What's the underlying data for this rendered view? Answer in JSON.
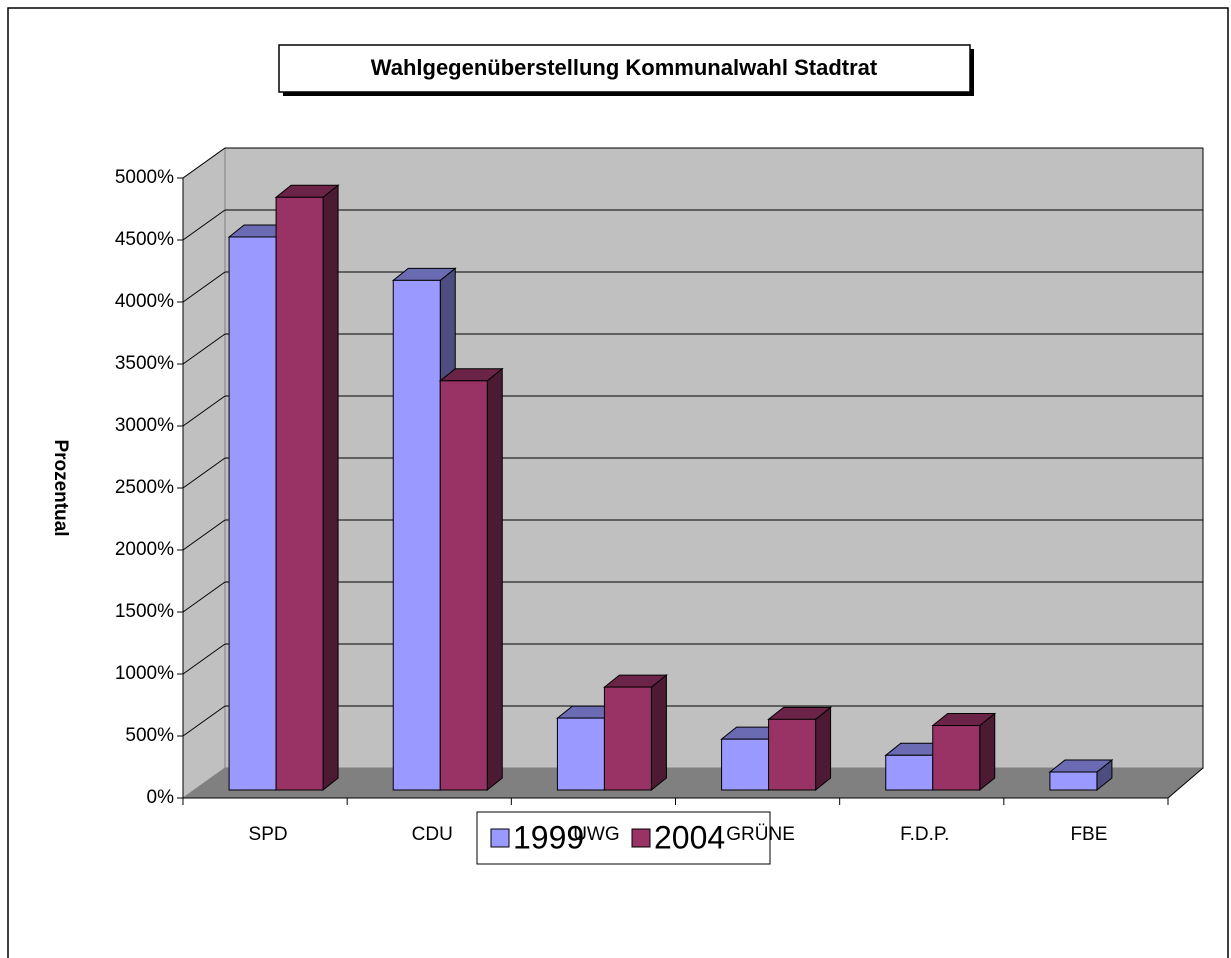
{
  "chart_data": {
    "type": "bar3d",
    "title": "Wahlgegenüberstellung Kommunalwahl Stadtrat",
    "y_label": "Prozentual",
    "categories": [
      "SPD",
      "CDU",
      "UWG",
      "GRÜNE",
      "F.D.P.",
      "FBE"
    ],
    "series": [
      {
        "name": "1999",
        "color": "#9999ff",
        "values": [
          4460,
          4110,
          580,
          410,
          280,
          145
        ]
      },
      {
        "name": "2004",
        "color": "#993366",
        "values": [
          4780,
          3300,
          830,
          570,
          520,
          null
        ]
      }
    ],
    "ylim": [
      0,
      5000
    ],
    "yticks": [
      {
        "value": 0,
        "label": "0%"
      },
      {
        "value": 500,
        "label": "500%"
      },
      {
        "value": 1000,
        "label": "1000%"
      },
      {
        "value": 1500,
        "label": "1500%"
      },
      {
        "value": 2000,
        "label": "2000%"
      },
      {
        "value": 2500,
        "label": "2500%"
      },
      {
        "value": 3000,
        "label": "3000%"
      },
      {
        "value": 3500,
        "label": "3500%"
      },
      {
        "value": 4000,
        "label": "4000%"
      },
      {
        "value": 4500,
        "label": "4500%"
      },
      {
        "value": 5000,
        "label": "5000%"
      }
    ],
    "grid": true,
    "legend": "bottom"
  }
}
